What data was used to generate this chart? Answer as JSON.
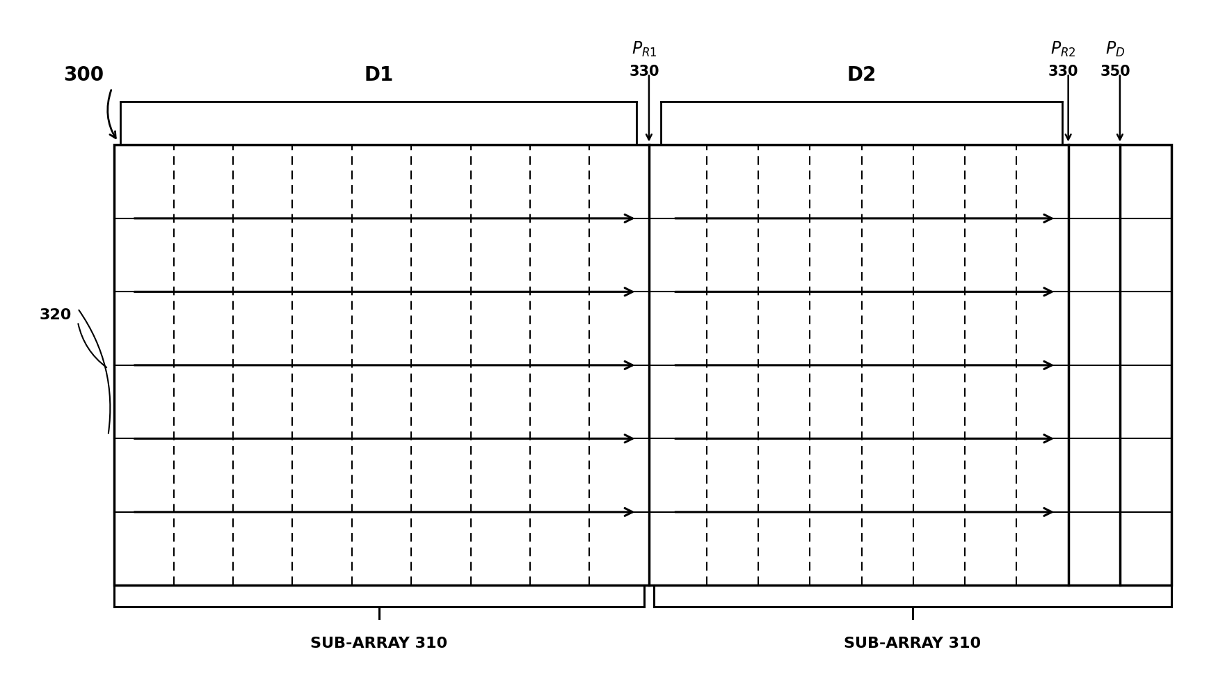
{
  "bg_color": "#ffffff",
  "line_color": "#000000",
  "fig_width": 17.61,
  "fig_height": 9.73,
  "label_300": "300",
  "label_D1": "D1",
  "label_D2": "D2",
  "label_PR1_num": "330",
  "label_PR2_num": "330",
  "label_PD_num": "350",
  "label_320": "320",
  "label_sub_left": "SUB-ARRAY 310",
  "label_sub_right": "SUB-ARRAY 310"
}
